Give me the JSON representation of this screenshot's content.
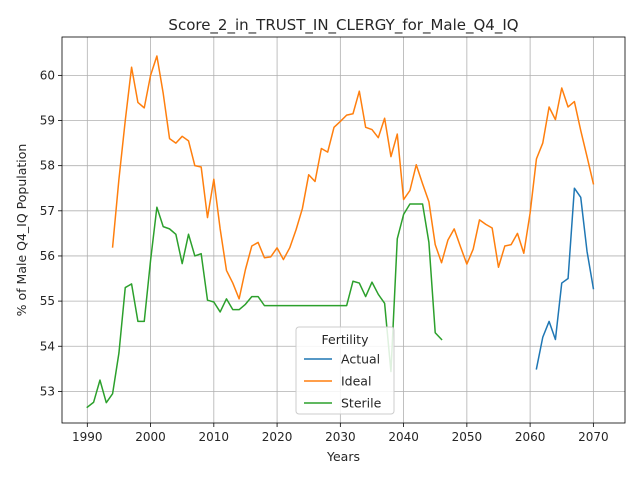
{
  "chart_data": {
    "type": "line",
    "title": "Score_2_in_TRUST_IN_CLERGY_for_Male_Q4_IQ",
    "xlabel": "Years",
    "ylabel": "% of Male Q4_IQ Population",
    "xlim": [
      1986,
      2075
    ],
    "ylim": [
      52.3,
      60.85
    ],
    "xticks": [
      1990,
      2000,
      2010,
      2020,
      2030,
      2040,
      2050,
      2060,
      2070
    ],
    "yticks": [
      53,
      54,
      55,
      56,
      57,
      58,
      59,
      60
    ],
    "grid": true,
    "legend": {
      "title": "Fertility",
      "position": "lower center"
    },
    "series": [
      {
        "name": "Actual",
        "color": "#1f77b4",
        "x": [
          2061,
          2062,
          2063,
          2064,
          2065,
          2066,
          2067,
          2068,
          2069,
          2070
        ],
        "y": [
          53.5,
          54.2,
          54.55,
          54.15,
          55.4,
          55.5,
          57.5,
          57.3,
          56.1,
          55.28
        ]
      },
      {
        "name": "Ideal",
        "color": "#ff7f0e",
        "x": [
          1994,
          1995,
          1996,
          1997,
          1998,
          1999,
          2000,
          2001,
          2002,
          2003,
          2004,
          2005,
          2006,
          2007,
          2008,
          2009,
          2010,
          2011,
          2012,
          2013,
          2014,
          2015,
          2016,
          2017,
          2018,
          2019,
          2020,
          2021,
          2022,
          2023,
          2024,
          2025,
          2026,
          2027,
          2028,
          2029,
          2030,
          2031,
          2032,
          2033,
          2034,
          2035,
          2036,
          2037,
          2038,
          2039,
          2040,
          2041,
          2042,
          2043,
          2044,
          2045,
          2046,
          2047,
          2048,
          2049,
          2050,
          2051,
          2052,
          2053,
          2054,
          2055,
          2056,
          2057,
          2058,
          2059,
          2060,
          2061,
          2062,
          2063,
          2064,
          2065,
          2066,
          2067,
          2068,
          2069,
          2070
        ],
        "y": [
          56.2,
          57.7,
          59.0,
          60.18,
          59.4,
          59.28,
          60.0,
          60.43,
          59.6,
          58.6,
          58.5,
          58.65,
          58.55,
          58.0,
          57.97,
          56.85,
          57.7,
          56.6,
          55.68,
          55.4,
          55.05,
          55.7,
          56.22,
          56.3,
          55.96,
          55.98,
          56.18,
          55.92,
          56.18,
          56.58,
          57.05,
          57.8,
          57.65,
          58.38,
          58.3,
          58.85,
          58.98,
          59.12,
          59.15,
          59.65,
          58.85,
          58.8,
          58.62,
          59.05,
          58.2,
          58.7,
          57.25,
          57.45,
          58.02,
          57.6,
          57.2,
          56.25,
          55.85,
          56.35,
          56.6,
          56.2,
          55.82,
          56.15,
          56.8,
          56.7,
          56.62,
          55.75,
          56.22,
          56.25,
          56.5,
          56.06,
          56.95,
          58.15,
          58.5,
          59.3,
          59.02,
          59.72,
          59.3,
          59.42,
          58.78,
          58.2,
          57.6
        ]
      },
      {
        "name": "Sterile",
        "color": "#2ca02c",
        "x": [
          1990,
          1991,
          1992,
          1993,
          1994,
          1995,
          1996,
          1997,
          1998,
          1999,
          2000,
          2001,
          2002,
          2003,
          2004,
          2005,
          2006,
          2007,
          2008,
          2009,
          2010,
          2011,
          2012,
          2013,
          2014,
          2015,
          2016,
          2017,
          2018,
          2019,
          2020,
          2021,
          2022,
          2023,
          2024,
          2025,
          2026,
          2027,
          2028,
          2029,
          2030,
          2031,
          2032,
          2033,
          2034,
          2035,
          2036,
          2037,
          2038,
          2039,
          2040,
          2041,
          2042,
          2043,
          2044,
          2045,
          2046
        ],
        "y": [
          52.65,
          52.76,
          53.25,
          52.75,
          52.95,
          53.85,
          55.3,
          55.38,
          54.55,
          54.55,
          55.9,
          57.08,
          56.65,
          56.6,
          56.48,
          55.83,
          56.48,
          56.0,
          56.05,
          55.02,
          54.98,
          54.76,
          55.05,
          54.81,
          54.81,
          54.93,
          55.1,
          55.1,
          54.9,
          54.9,
          54.9,
          54.9,
          54.9,
          54.9,
          54.9,
          54.9,
          54.9,
          54.9,
          54.9,
          54.9,
          54.9,
          54.9,
          55.44,
          55.4,
          55.1,
          55.42,
          55.15,
          54.95,
          53.44,
          56.38,
          56.92,
          57.15,
          57.15,
          57.15,
          56.3,
          54.3,
          54.15
        ]
      }
    ]
  }
}
